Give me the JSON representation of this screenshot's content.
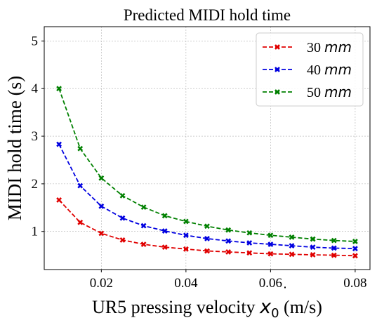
{
  "chart_data": {
    "type": "line",
    "title": "Predicted MIDI hold time",
    "xlabel_main": "UR5 pressing velocity ",
    "xlabel_symbol": "x",
    "xlabel_subscript": "0",
    "xlabel_unit": " (m/s)",
    "ylabel": "MIDI hold time (s)",
    "xlim": [
      0.0065,
      0.0835
    ],
    "ylim": [
      0.2,
      5.3
    ],
    "xticks": [
      0.02,
      0.04,
      0.06,
      0.08
    ],
    "xtick_labels": [
      "0.02",
      "0.04",
      "0.06",
      "0.08"
    ],
    "yticks": [
      1,
      2,
      3,
      4,
      5
    ],
    "ytick_labels": [
      "1",
      "2",
      "3",
      "4",
      "5"
    ],
    "grid": true,
    "legend_position": "top-right",
    "x": [
      0.01,
      0.015,
      0.02,
      0.025,
      0.03,
      0.035,
      0.04,
      0.045,
      0.05,
      0.055,
      0.06,
      0.065,
      0.07,
      0.075,
      0.08
    ],
    "series": [
      {
        "name_num": "30",
        "name_unit": "mm",
        "color": "#e00000",
        "values": [
          1.66,
          1.19,
          0.96,
          0.82,
          0.73,
          0.67,
          0.63,
          0.59,
          0.57,
          0.55,
          0.53,
          0.52,
          0.51,
          0.5,
          0.49
        ]
      },
      {
        "name_num": "40",
        "name_unit": "mm",
        "color": "#0000e0",
        "values": [
          2.83,
          1.96,
          1.53,
          1.28,
          1.12,
          1.01,
          0.92,
          0.85,
          0.8,
          0.76,
          0.73,
          0.7,
          0.67,
          0.65,
          0.64
        ]
      },
      {
        "name_num": "50",
        "name_unit": "mm",
        "color": "#008000",
        "values": [
          4.0,
          2.74,
          2.12,
          1.75,
          1.51,
          1.33,
          1.21,
          1.11,
          1.03,
          0.97,
          0.92,
          0.88,
          0.84,
          0.81,
          0.79
        ]
      }
    ]
  }
}
